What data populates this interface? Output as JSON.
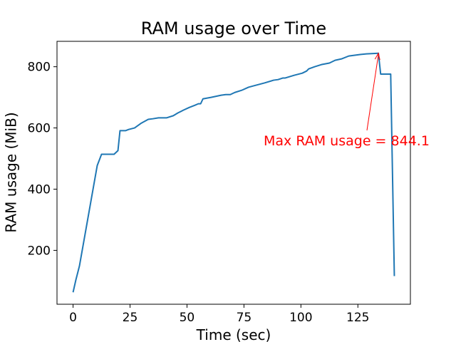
{
  "chart_data": {
    "type": "line",
    "title": "RAM usage over Time",
    "xlabel": "Time (sec)",
    "ylabel": "RAM usage (MiB)",
    "annotation": "Max RAM usage = 844.1",
    "annotation_color": "#ff0000",
    "x": [
      0,
      1.25,
      2.8,
      10.6,
      12.5,
      18,
      19.7,
      20.6,
      23,
      24.4,
      27,
      30,
      33,
      35,
      37.5,
      41,
      44,
      46,
      48.4,
      51,
      53.4,
      55,
      56,
      57,
      60.6,
      65,
      67,
      69,
      71,
      74,
      77,
      79,
      84,
      88,
      90,
      92,
      93,
      97,
      100.6,
      102.5,
      103.4,
      106,
      109,
      112.5,
      115,
      118,
      121,
      126,
      128.7,
      134,
      135,
      139.4,
      141
    ],
    "series": [
      {
        "name": "RAM usage",
        "color": "#1f77b4",
        "values": [
          63,
          104,
          149,
          477,
          514,
          514,
          526,
          591,
          591,
          595,
          600,
          616,
          628,
          630,
          633,
          633,
          640,
          649,
          658,
          667,
          674,
          679,
          679,
          695,
          700,
          707,
          709,
          709,
          716,
          723,
          733,
          737,
          747,
          756,
          758,
          763,
          763,
          772,
          779,
          786,
          793,
          800,
          807,
          812,
          821,
          826,
          835,
          840,
          842,
          844.1,
          776,
          776,
          116
        ]
      }
    ],
    "xlim": [
      -7.05,
      148.05
    ],
    "ylim": [
      24,
      883
    ],
    "xticks": [
      0,
      25,
      50,
      75,
      100,
      125
    ],
    "yticks": [
      200,
      400,
      600,
      800
    ]
  }
}
